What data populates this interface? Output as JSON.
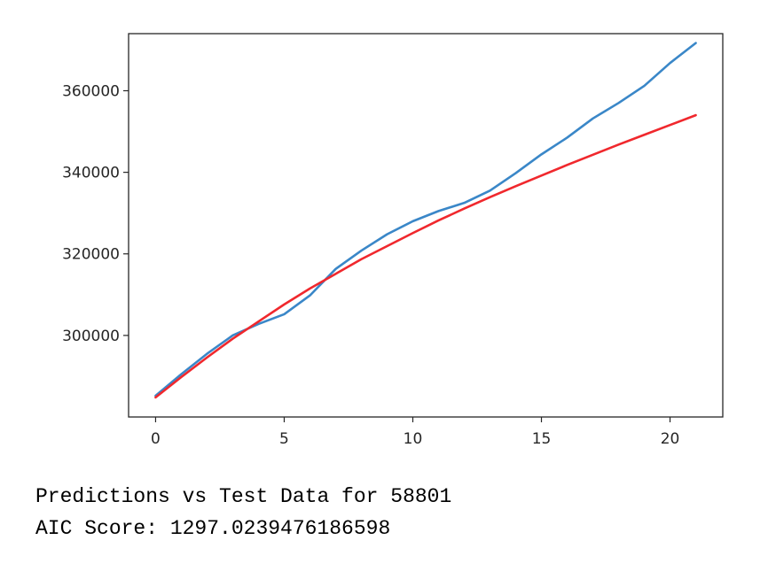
{
  "chart_data": {
    "type": "line",
    "title": "",
    "xlabel": "",
    "ylabel": "",
    "xlim": [
      -1.05,
      22.05
    ],
    "ylim": [
      280000,
      374000
    ],
    "x_ticks": [
      0,
      5,
      10,
      15,
      20
    ],
    "x_tick_labels": [
      "0",
      "5",
      "10",
      "15",
      "20"
    ],
    "y_ticks": [
      300000,
      320000,
      340000,
      360000
    ],
    "y_tick_labels": [
      "300000",
      "320000",
      "340000",
      "360000"
    ],
    "grid": false,
    "legend": false,
    "x": [
      0,
      1,
      2,
      3,
      4,
      5,
      6,
      7,
      8,
      9,
      10,
      11,
      12,
      13,
      14,
      15,
      16,
      17,
      18,
      19,
      20,
      21
    ],
    "series": [
      {
        "color": "#3a87c8",
        "values": [
          285200,
          290500,
          295500,
          300000,
          302800,
          305200,
          309800,
          316300,
          320800,
          324800,
          328000,
          330500,
          332500,
          335500,
          339800,
          344400,
          348500,
          353200,
          357000,
          361200,
          366800,
          371700
        ]
      },
      {
        "color": "#f0282d",
        "values": [
          284800,
          289800,
          294600,
          299200,
          303400,
          307600,
          311500,
          315100,
          318700,
          321900,
          325100,
          328200,
          331100,
          333900,
          336600,
          339200,
          341800,
          344300,
          346800,
          349200,
          351600,
          354000
        ]
      }
    ]
  },
  "caption": {
    "line1": "Predictions vs Test Data for 58801",
    "line2": "AIC Score: 1297.0239476186598"
  }
}
